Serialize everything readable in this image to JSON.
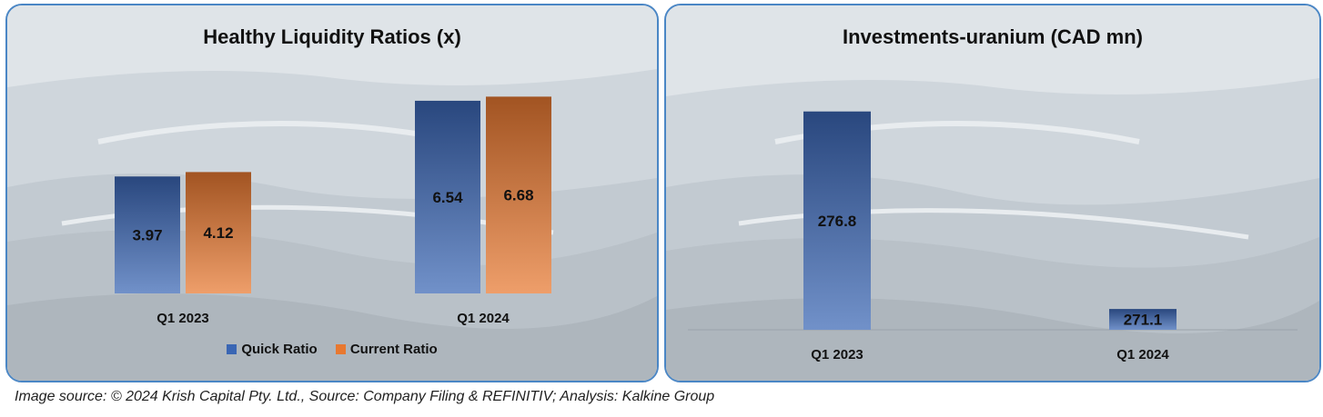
{
  "caption": "Image source: © 2024 Krish Capital Pty. Ltd., Source: Company Filing & REFINITIV; Analysis: Kalkine Group",
  "colors": {
    "quick_ratio": "#3a66b4",
    "current_ratio": "#e87830",
    "investments": "#3a66b4",
    "panel_border": "#4a86c5"
  },
  "chart_data": [
    {
      "type": "bar",
      "title": "Healthy Liquidity Ratios (x)",
      "categories": [
        "Q1 2023",
        "Q1 2024"
      ],
      "series": [
        {
          "name": "Quick Ratio",
          "values": [
            3.97,
            6.54
          ]
        },
        {
          "name": "Current Ratio",
          "values": [
            4.12,
            6.68
          ]
        }
      ],
      "value_labels": [
        [
          "3.97",
          "6.54"
        ],
        [
          "4.12",
          "6.68"
        ]
      ],
      "legend": "bottom",
      "grid": false,
      "ylim": [
        0,
        7
      ]
    },
    {
      "type": "bar",
      "title": "Investments-uranium (CAD mn)",
      "categories": [
        "Q1 2023",
        "Q1 2024"
      ],
      "values": [
        276.8,
        271.1
      ],
      "value_labels": [
        "276.8",
        "271.1"
      ],
      "legend": "none",
      "grid": false,
      "ylim": [
        270.5,
        277.5
      ]
    }
  ]
}
